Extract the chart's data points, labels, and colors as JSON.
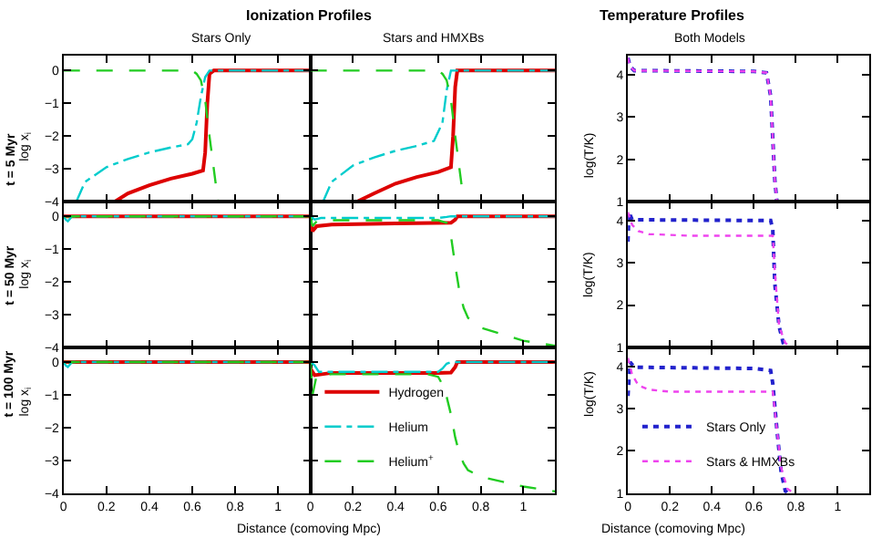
{
  "chart_data": [
    {
      "type": "line",
      "title": "Ionization Profiles",
      "subtitle": "Stars Only",
      "ylabel": "log x$_{i}$",
      "annotations": [
        "t = 5 Myr"
      ],
      "xlim": [
        0,
        1.15
      ],
      "ylim": [
        -4,
        0.45
      ],
      "xticks": [
        0,
        0.2,
        0.4,
        0.6,
        0.8,
        1
      ],
      "yticks": [
        {
          "value": -4,
          "label": "−4"
        },
        {
          "value": -3,
          "label": "−3"
        },
        {
          "value": -2,
          "label": "−2"
        },
        {
          "value": -1,
          "label": "−1"
        },
        0
      ],
      "tick_labels": "y",
      "grid": false,
      "series": [
        {
          "color": "#dd0000",
          "line_style": "solid",
          "x": [
            0.24,
            0.3,
            0.4,
            0.5,
            0.6,
            0.65,
            0.66,
            0.67,
            0.68,
            0.7,
            1.15
          ],
          "values": [
            -4,
            -3.75,
            -3.5,
            -3.3,
            -3.15,
            -3.05,
            -2.5,
            -1,
            -0.1,
            0,
            0
          ]
        },
        {
          "color": "#00cccc",
          "line_style": "dashdot",
          "x": [
            0.06,
            0.1,
            0.2,
            0.3,
            0.4,
            0.5,
            0.58,
            0.6,
            0.62,
            0.64,
            0.66,
            0.68,
            1.15
          ],
          "values": [
            -4,
            -3.4,
            -2.95,
            -2.7,
            -2.5,
            -2.35,
            -2.25,
            -2.1,
            -1.6,
            -0.8,
            -0.2,
            0,
            0
          ]
        },
        {
          "color": "#22cc22",
          "line_style": "dashed",
          "x": [
            0,
            0.6,
            0.62,
            0.64,
            0.66,
            0.68,
            0.7,
            0.72
          ],
          "values": [
            0,
            0,
            -0.1,
            -0.3,
            -0.9,
            -2,
            -3,
            -4
          ]
        }
      ]
    },
    {
      "type": "line",
      "subtitle": "Stars and HMXBs",
      "xlim": [
        0,
        1.15
      ],
      "ylim": [
        -4,
        0.45
      ],
      "xticks": [
        0,
        0.2,
        0.4,
        0.6,
        0.8,
        1
      ],
      "yticks": [
        {
          "value": -4,
          "label": null
        },
        {
          "value": -3,
          "label": null
        },
        {
          "value": -2,
          "label": null
        },
        {
          "value": -1,
          "label": null
        },
        {
          "value": 0,
          "label": null
        }
      ],
      "tick_labels": false,
      "grid": false,
      "series": [
        {
          "color": "#dd0000",
          "line_style": "solid",
          "x": [
            0.22,
            0.3,
            0.4,
            0.5,
            0.6,
            0.66,
            0.67,
            0.68,
            0.69,
            1.15
          ],
          "values": [
            -4,
            -3.75,
            -3.45,
            -3.25,
            -3.1,
            -2.95,
            -2,
            -0.5,
            0,
            0
          ]
        },
        {
          "color": "#00cccc",
          "line_style": "dashdot",
          "x": [
            0.06,
            0.1,
            0.2,
            0.3,
            0.4,
            0.5,
            0.58,
            0.62,
            0.64,
            0.66,
            1.15
          ],
          "values": [
            -4,
            -3.4,
            -2.9,
            -2.65,
            -2.45,
            -2.3,
            -2.15,
            -1.6,
            -0.6,
            0,
            0
          ]
        },
        {
          "color": "#22cc22",
          "line_style": "dashed",
          "x": [
            0,
            0.6,
            0.62,
            0.64,
            0.66,
            0.68,
            0.7,
            0.72
          ],
          "values": [
            0,
            0,
            -0.1,
            -0.3,
            -0.9,
            -2,
            -3,
            -4
          ]
        }
      ]
    },
    {
      "type": "line",
      "title": "Temperature Profiles",
      "subtitle": "Both Models",
      "ylabel": "log(T/K)",
      "xlim": [
        0,
        1.15
      ],
      "ylim": [
        1,
        4.45
      ],
      "xticks": [
        0,
        0.2,
        0.4,
        0.6,
        0.8,
        1
      ],
      "yticks": [
        1,
        2,
        3,
        4
      ],
      "tick_labels": "y",
      "grid": false,
      "series": [
        {
          "color": "#2222cc",
          "line_style": "dotted",
          "x": [
            0,
            0.01,
            0.03,
            0.6,
            0.66,
            0.68,
            0.69,
            0.7,
            0.71
          ],
          "values": [
            4.4,
            4.2,
            4.1,
            4.08,
            4.05,
            3.5,
            2.5,
            1.5,
            1
          ]
        },
        {
          "color": "#ee44ee",
          "line_style": "dotted",
          "x": [
            0,
            0.01,
            0.03,
            0.6,
            0.66,
            0.68,
            0.69,
            0.7,
            0.71
          ],
          "values": [
            4.4,
            4.2,
            4.1,
            4.08,
            4.05,
            3.5,
            2.5,
            1.5,
            1
          ]
        }
      ]
    },
    {
      "type": "line",
      "ylabel": "log x$_{i}$",
      "annotations": [
        "t = 50 Myr"
      ],
      "xlim": [
        0,
        1.15
      ],
      "ylim": [
        -4,
        0.45
      ],
      "xticks": [
        0,
        0.2,
        0.4,
        0.6,
        0.8,
        1
      ],
      "yticks": [
        {
          "value": -4,
          "label": "−4"
        },
        {
          "value": -3,
          "label": "−3"
        },
        {
          "value": -2,
          "label": "−2"
        },
        {
          "value": -1,
          "label": "−1"
        },
        0
      ],
      "tick_labels": "y",
      "grid": false,
      "series": [
        {
          "color": "#dd0000",
          "line_style": "solid",
          "x": [
            0,
            1.15
          ],
          "values": [
            0,
            0
          ]
        },
        {
          "color": "#00cccc",
          "line_style": "dashdot",
          "x": [
            0,
            0.01,
            0.02,
            0.04,
            1.15
          ],
          "values": [
            0,
            -0.1,
            -0.15,
            0,
            0
          ]
        },
        {
          "color": "#22cc22",
          "line_style": "dashed",
          "x": [
            0,
            1.15
          ],
          "values": [
            0,
            0
          ]
        }
      ]
    },
    {
      "type": "line",
      "xlim": [
        0,
        1.15
      ],
      "ylim": [
        -4,
        0.45
      ],
      "xticks": [
        0,
        0.2,
        0.4,
        0.6,
        0.8,
        1
      ],
      "yticks": [
        {
          "value": -4,
          "label": null
        },
        {
          "value": -3,
          "label": null
        },
        {
          "value": -2,
          "label": null
        },
        {
          "value": -1,
          "label": null
        },
        {
          "value": 0,
          "label": null
        }
      ],
      "tick_labels": false,
      "grid": false,
      "series": [
        {
          "color": "#dd0000",
          "line_style": "solid",
          "x": [
            0,
            0.01,
            0.03,
            0.1,
            0.4,
            0.66,
            0.68,
            0.69,
            1.15
          ],
          "values": [
            -0.2,
            -0.45,
            -0.3,
            -0.25,
            -0.22,
            -0.2,
            -0.1,
            0,
            0
          ]
        },
        {
          "color": "#00cccc",
          "line_style": "dashdot",
          "x": [
            0,
            0.02,
            0.05,
            0.6,
            0.64,
            0.66,
            1.15
          ],
          "values": [
            0,
            -0.1,
            -0.05,
            -0.05,
            -0.02,
            0,
            0
          ]
        },
        {
          "color": "#22cc22",
          "line_style": "dashed",
          "x": [
            0,
            0.01,
            0.03,
            0.1,
            0.6,
            0.64,
            0.66,
            0.68,
            0.7,
            0.72,
            0.74,
            0.8,
            0.9,
            1.0,
            1.15
          ],
          "values": [
            0,
            -0.3,
            -0.15,
            -0.12,
            -0.12,
            -0.2,
            -0.6,
            -1.5,
            -2.3,
            -2.8,
            -3.1,
            -3.4,
            -3.6,
            -3.8,
            -3.95
          ]
        }
      ]
    },
    {
      "type": "line",
      "ylabel": "log(T/K)",
      "xlim": [
        0,
        1.15
      ],
      "ylim": [
        1,
        4.45
      ],
      "xticks": [
        0,
        0.2,
        0.4,
        0.6,
        0.8,
        1
      ],
      "yticks": [
        1,
        2,
        3,
        4
      ],
      "tick_labels": "y",
      "grid": false,
      "series": [
        {
          "color": "#2222cc",
          "line_style": "dotted",
          "x": [
            0,
            0.005,
            0.02,
            0.68,
            0.69,
            0.7,
            0.72,
            0.74,
            0.76
          ],
          "values": [
            3.5,
            4.2,
            4.02,
            4.0,
            3.8,
            2.5,
            1.5,
            1.1,
            1
          ]
        },
        {
          "color": "#ee44ee",
          "line_style": "dotted",
          "x": [
            0,
            0.02,
            0.05,
            0.1,
            0.3,
            0.69,
            0.7,
            0.72,
            0.75,
            0.78
          ],
          "values": [
            4.2,
            3.9,
            3.75,
            3.68,
            3.64,
            3.64,
            2.8,
            1.5,
            1.1,
            1
          ]
        }
      ]
    },
    {
      "type": "line",
      "xlabel": "Distance (comoving Mpc)",
      "ylabel": "log x$_{i}$",
      "annotations": [
        "t = 100 Myr"
      ],
      "xlim": [
        0,
        1.15
      ],
      "ylim": [
        -4,
        0.45
      ],
      "xticks": [
        0,
        0.2,
        0.4,
        0.6,
        0.8,
        1
      ],
      "yticks": [
        {
          "value": -4,
          "label": "−4"
        },
        {
          "value": -3,
          "label": "−3"
        },
        {
          "value": -2,
          "label": "−2"
        },
        {
          "value": -1,
          "label": "−1"
        },
        0
      ],
      "grid": false,
      "series": [
        {
          "color": "#dd0000",
          "line_style": "solid",
          "x": [
            0,
            1.15
          ],
          "values": [
            0,
            0
          ]
        },
        {
          "color": "#00cccc",
          "line_style": "dashdot",
          "x": [
            0,
            0.01,
            0.02,
            0.04,
            1.15
          ],
          "values": [
            0,
            -0.1,
            -0.15,
            0,
            0
          ]
        },
        {
          "color": "#22cc22",
          "line_style": "dashed",
          "x": [
            0,
            1.15
          ],
          "values": [
            0,
            0
          ]
        }
      ]
    },
    {
      "type": "line",
      "xlim": [
        0,
        1.15
      ],
      "ylim": [
        -4,
        0.45
      ],
      "xticks": [
        0,
        0.2,
        0.4,
        0.6,
        0.8,
        1
      ],
      "yticks": [
        {
          "value": -4,
          "label": null
        },
        {
          "value": -3,
          "label": null
        },
        {
          "value": -2,
          "label": null
        },
        {
          "value": -1,
          "label": null
        },
        {
          "value": 0,
          "label": null
        }
      ],
      "tick_labels": "x",
      "grid": false,
      "legend": "bottom left",
      "series": [
        {
          "name": "Hydrogen",
          "color": "#dd0000",
          "line_style": "solid",
          "x": [
            0,
            0.02,
            0.1,
            0.6,
            0.66,
            0.68,
            0.69,
            1.15
          ],
          "values": [
            -0.2,
            -0.4,
            -0.33,
            -0.33,
            -0.32,
            -0.15,
            0,
            0
          ]
        },
        {
          "name": "Helium",
          "color": "#00cccc",
          "line_style": "dashdot",
          "x": [
            0,
            0.02,
            0.04,
            0.1,
            0.6,
            0.62,
            0.64,
            0.66,
            1.15
          ],
          "values": [
            0,
            -0.1,
            -0.3,
            -0.3,
            -0.3,
            -0.2,
            -0.05,
            0,
            0
          ]
        },
        {
          "name": "Helium$^{+}$",
          "color": "#22cc22",
          "line_style": "dashed",
          "x": [
            0,
            0.01,
            0.03,
            0.1,
            0.55,
            0.6,
            0.63,
            0.66,
            0.68,
            0.7,
            0.72,
            0.74,
            0.8,
            0.9,
            1.0,
            1.15
          ],
          "values": [
            0,
            -1,
            -0.4,
            -0.37,
            -0.37,
            -0.45,
            -0.8,
            -1.6,
            -2.3,
            -2.8,
            -3.1,
            -3.3,
            -3.5,
            -3.65,
            -3.8,
            -3.95
          ]
        }
      ]
    },
    {
      "type": "line",
      "xlabel": "Distance (comoving Mpc)",
      "ylabel": "log(T/K)",
      "xlim": [
        0,
        1.15
      ],
      "ylim": [
        1,
        4.45
      ],
      "xticks": [
        0,
        0.2,
        0.4,
        0.6,
        0.8,
        1
      ],
      "yticks": [
        1,
        2,
        3,
        4
      ],
      "grid": false,
      "legend": "bottom left",
      "series": [
        {
          "name": "Stars Only",
          "color": "#2222cc",
          "line_style": "dotted",
          "x": [
            0,
            0.01,
            0.03,
            0.6,
            0.68,
            0.69,
            0.71,
            0.73,
            0.75,
            0.76
          ],
          "values": [
            3.3,
            4.1,
            3.98,
            3.95,
            3.9,
            3.6,
            2.5,
            1.5,
            1.05,
            1
          ]
        },
        {
          "name": "Stars & HMXBs",
          "color": "#ee44ee",
          "line_style": "dotted",
          "x": [
            0,
            0.02,
            0.05,
            0.1,
            0.2,
            0.69,
            0.71,
            0.73,
            0.76,
            0.79
          ],
          "values": [
            4.2,
            3.8,
            3.55,
            3.45,
            3.4,
            3.4,
            2.5,
            1.6,
            1.1,
            1
          ]
        }
      ]
    }
  ]
}
